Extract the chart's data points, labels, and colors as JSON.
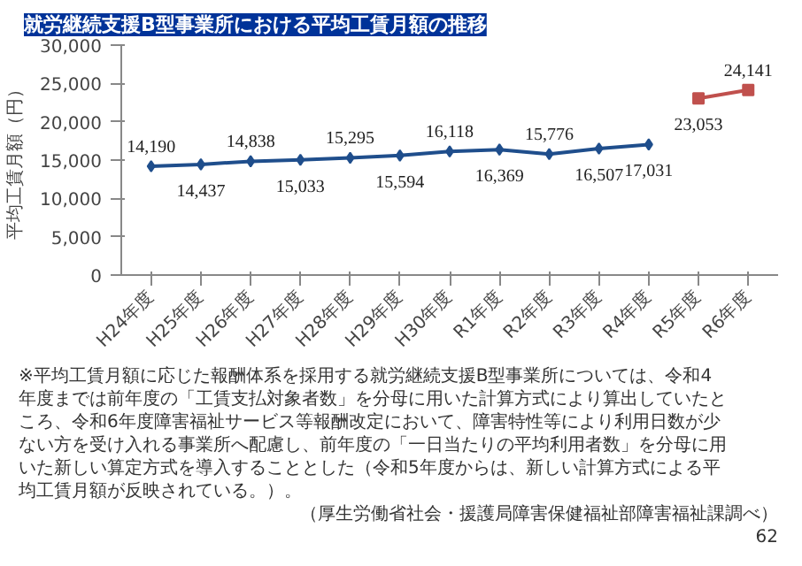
{
  "chart_data": {
    "type": "line",
    "title": "就労継続支援B型事業所における平均工賃月額の推移",
    "ylabel": "平均工賃月額（円）",
    "categories": [
      "H24年度",
      "H25年度",
      "H26年度",
      "H27年度",
      "H28年度",
      "H29年度",
      "H30年度",
      "R1年度",
      "R2年度",
      "R3年度",
      "R4年度",
      "R5年度",
      "R6年度"
    ],
    "series": [
      {
        "color": "#1f4e8c",
        "marker": "diamond",
        "values": [
          14190,
          14437,
          14838,
          15033,
          15295,
          15594,
          16118,
          16369,
          15776,
          16507,
          17031,
          null,
          null
        ],
        "value_labels": [
          "14,190",
          "14,437",
          "14,838",
          "15,033",
          "15,295",
          "15,594",
          "16,118",
          "16,369",
          "15,776",
          "16,507",
          "17,031",
          null,
          null
        ]
      },
      {
        "color": "#c0504d",
        "marker": "square",
        "values": [
          null,
          null,
          null,
          null,
          null,
          null,
          null,
          null,
          null,
          null,
          null,
          23053,
          24141
        ],
        "value_labels": [
          null,
          null,
          null,
          null,
          null,
          null,
          null,
          null,
          null,
          null,
          null,
          "23,053",
          "24,141"
        ]
      }
    ],
    "ylim": [
      0,
      30000
    ],
    "yticks": [
      0,
      {
        "value": 5000,
        "label": "5,000"
      },
      {
        "value": 10000,
        "label": "10,000"
      },
      {
        "value": 15000,
        "label": "15,000"
      },
      {
        "value": 20000,
        "label": "20,000"
      },
      {
        "value": 25000,
        "label": "25,000"
      },
      {
        "value": 30000,
        "label": "30,000"
      }
    ],
    "grid": false,
    "annotations": [
      "※平均工賃月額に応じた報酬体系を採用する就労継続支援B型事業所については、令和4年度までは前年度の「工賃支払対象者数」を分母に用いた計算方式により算出していたところ、令和6年度障害福祉サービス等報酬改定において、障害特性等により利用日数が少ない方を受け入れる事業所へ配慮し、前年度の「一日当たりの平均利用者数」を分母に用いた新しい算定方式を導入することとした（令和5年度からは、新しい計算方式による平均工賃月額が反映されている。）。",
      "（厚生労働省社会・援護局障害保健福祉部障害福祉課調べ）",
      "62"
    ]
  }
}
